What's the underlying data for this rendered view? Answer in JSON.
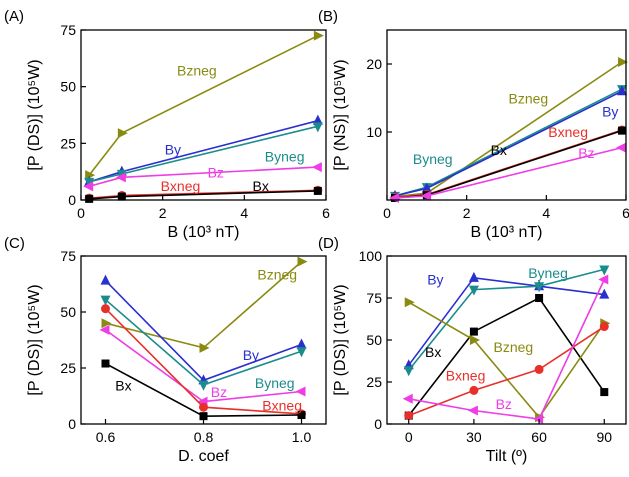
{
  "colors": {
    "Bx": "#000000",
    "Bxneg": "#e8302a",
    "By": "#2a2fd0",
    "Byneg": "#1b8c8c",
    "Bz": "#ee3ce6",
    "Bzneg": "#8a8a12"
  },
  "markers": {
    "Bx": "square",
    "Bxneg": "circle",
    "By": "triangle-up",
    "Byneg": "triangle-down",
    "Bz": "triangle-left",
    "Bzneg": "triangle-right"
  },
  "chart_data": [
    {
      "type": "line",
      "panel_label": "(A)",
      "xlabel": "B (10³ nT)",
      "ylabel": "[P (DS)] (10⁵W)",
      "xlim": [
        0,
        6
      ],
      "ylim": [
        0,
        75
      ],
      "xticks": [
        "0",
        "2",
        "4",
        "6"
      ],
      "xtick_values": [
        0,
        2,
        4,
        6
      ],
      "yticks": [
        "0",
        "25",
        "50",
        "75"
      ],
      "ytick_values": [
        0,
        25,
        50,
        75
      ],
      "series": [
        {
          "name": "Bzneg",
          "x": [
            0.2,
            1,
            5.8
          ],
          "y": [
            11,
            29.5,
            72.5
          ],
          "label_anchor": [
            2.35,
            55
          ]
        },
        {
          "name": "By",
          "x": [
            0.2,
            1,
            5.8
          ],
          "y": [
            8,
            12.5,
            35
          ],
          "label_anchor": [
            2.05,
            20
          ]
        },
        {
          "name": "Byneg",
          "x": [
            0.2,
            1,
            5.8
          ],
          "y": [
            8,
            11.5,
            32.5
          ],
          "label_anchor": [
            4.5,
            17
          ]
        },
        {
          "name": "Bz",
          "x": [
            0.2,
            1,
            5.8
          ],
          "y": [
            6,
            10,
            14.5
          ],
          "label_anchor": [
            3.1,
            10
          ]
        },
        {
          "name": "Bxneg",
          "x": [
            0.2,
            1,
            5.8
          ],
          "y": [
            0.8,
            2,
            4.3
          ],
          "label_anchor": [
            1.95,
            4
          ]
        },
        {
          "name": "Bx",
          "x": [
            0.2,
            1,
            5.8
          ],
          "y": [
            0.5,
            1.5,
            4
          ],
          "label_anchor": [
            4.2,
            4
          ]
        }
      ]
    },
    {
      "type": "line",
      "panel_label": "(B)",
      "xlabel": "B (10³ nT)",
      "ylabel": "[P (NS)] (10⁵W)",
      "xlim": [
        0,
        6
      ],
      "ylim": [
        0,
        25
      ],
      "xticks": [
        "0",
        "2",
        "4",
        "6"
      ],
      "xtick_values": [
        0,
        2,
        4,
        6
      ],
      "yticks": [
        "10",
        "20"
      ],
      "ytick_values": [
        10,
        20
      ],
      "series": [
        {
          "name": "Bzneg",
          "x": [
            0.2,
            1,
            5.9
          ],
          "y": [
            0.5,
            1,
            20.3
          ],
          "label_anchor": [
            3.05,
            14.2
          ]
        },
        {
          "name": "Byneg",
          "x": [
            0.2,
            1,
            5.9
          ],
          "y": [
            0.6,
            1.9,
            16.3
          ],
          "label_anchor": [
            0.65,
            5.3
          ]
        },
        {
          "name": "By",
          "x": [
            0.2,
            1,
            5.9
          ],
          "y": [
            0.6,
            1.7,
            16
          ],
          "label_anchor": [
            5.4,
            12.3
          ]
        },
        {
          "name": "Bxneg",
          "x": [
            0.2,
            1,
            5.9
          ],
          "y": [
            0.4,
            0.8,
            10.3
          ],
          "label_anchor": [
            4.05,
            9.3
          ]
        },
        {
          "name": "Bx",
          "x": [
            0.2,
            1,
            5.9
          ],
          "y": [
            0.3,
            0.7,
            10.2
          ],
          "label_anchor": [
            2.6,
            6.6
          ]
        },
        {
          "name": "Bz",
          "x": [
            0.2,
            1,
            5.9
          ],
          "y": [
            0.3,
            0.6,
            7.7
          ],
          "label_anchor": [
            4.8,
            6.2
          ]
        }
      ]
    },
    {
      "type": "line",
      "panel_label": "(C)",
      "xlabel": "D. coef",
      "ylabel": "[P (DS)] (10⁵W)",
      "xlim": [
        0.55,
        1.05
      ],
      "ylim": [
        0,
        75
      ],
      "xticks": [
        "0.6",
        "0.8",
        "1.0"
      ],
      "xtick_values": [
        0.6,
        0.8,
        1.0
      ],
      "yticks": [
        "0",
        "25",
        "50",
        "75"
      ],
      "ytick_values": [
        0,
        25,
        50,
        75
      ],
      "series": [
        {
          "name": "Bzneg",
          "x": [
            0.6,
            0.8,
            1.0
          ],
          "y": [
            45,
            34,
            72.5
          ],
          "label_anchor": [
            0.91,
            64.5
          ]
        },
        {
          "name": "By",
          "x": [
            0.6,
            0.8,
            1.0
          ],
          "y": [
            64,
            19.5,
            35.5
          ],
          "label_anchor": [
            0.88,
            28.5
          ]
        },
        {
          "name": "Byneg",
          "x": [
            0.6,
            0.8,
            1.0
          ],
          "y": [
            55.5,
            17.5,
            32.5
          ],
          "label_anchor": [
            0.905,
            16
          ]
        },
        {
          "name": "Bz",
          "x": [
            0.6,
            0.8,
            1.0
          ],
          "y": [
            42,
            10,
            14.5
          ],
          "label_anchor": [
            0.815,
            12
          ]
        },
        {
          "name": "Bxneg",
          "x": [
            0.6,
            0.8,
            1.0
          ],
          "y": [
            51.5,
            7.5,
            4.5
          ],
          "label_anchor": [
            0.92,
            6
          ]
        },
        {
          "name": "Bx",
          "x": [
            0.6,
            0.8,
            1.0
          ],
          "y": [
            27,
            3.5,
            4
          ],
          "label_anchor": [
            0.62,
            15
          ]
        }
      ]
    },
    {
      "type": "line",
      "panel_label": "(D)",
      "xlabel": "Tilt (º)",
      "ylabel": "[P (DS)] (10⁵W)",
      "xlim": [
        -10,
        100
      ],
      "ylim": [
        0,
        100
      ],
      "xticks": [
        "0",
        "30",
        "60",
        "90"
      ],
      "xtick_values": [
        0,
        30,
        60,
        90
      ],
      "yticks": [
        "0",
        "25",
        "50",
        "75",
        "100"
      ],
      "ytick_values": [
        0,
        25,
        50,
        75,
        100
      ],
      "series": [
        {
          "name": "By",
          "x": [
            0,
            30,
            60,
            90
          ],
          "y": [
            35,
            87,
            82,
            77
          ],
          "label_anchor": [
            8.5,
            83
          ]
        },
        {
          "name": "Byneg",
          "x": [
            0,
            30,
            60,
            90
          ],
          "y": [
            32,
            80,
            82,
            92
          ],
          "label_anchor": [
            55,
            87
          ]
        },
        {
          "name": "Bx",
          "x": [
            0,
            30,
            60,
            90
          ],
          "y": [
            5,
            55,
            75,
            19
          ],
          "label_anchor": [
            7.5,
            40
          ]
        },
        {
          "name": "Bzneg",
          "x": [
            0,
            30,
            60,
            90
          ],
          "y": [
            72.5,
            50,
            4,
            60
          ],
          "label_anchor": [
            39,
            43
          ]
        },
        {
          "name": "Bxneg",
          "x": [
            0,
            30,
            60,
            90
          ],
          "y": [
            5,
            20,
            32.5,
            58
          ],
          "label_anchor": [
            17,
            26
          ]
        },
        {
          "name": "Bz",
          "x": [
            0,
            30,
            60,
            90
          ],
          "y": [
            15,
            8,
            3,
            86
          ],
          "label_anchor": [
            40,
            9
          ]
        }
      ]
    }
  ]
}
